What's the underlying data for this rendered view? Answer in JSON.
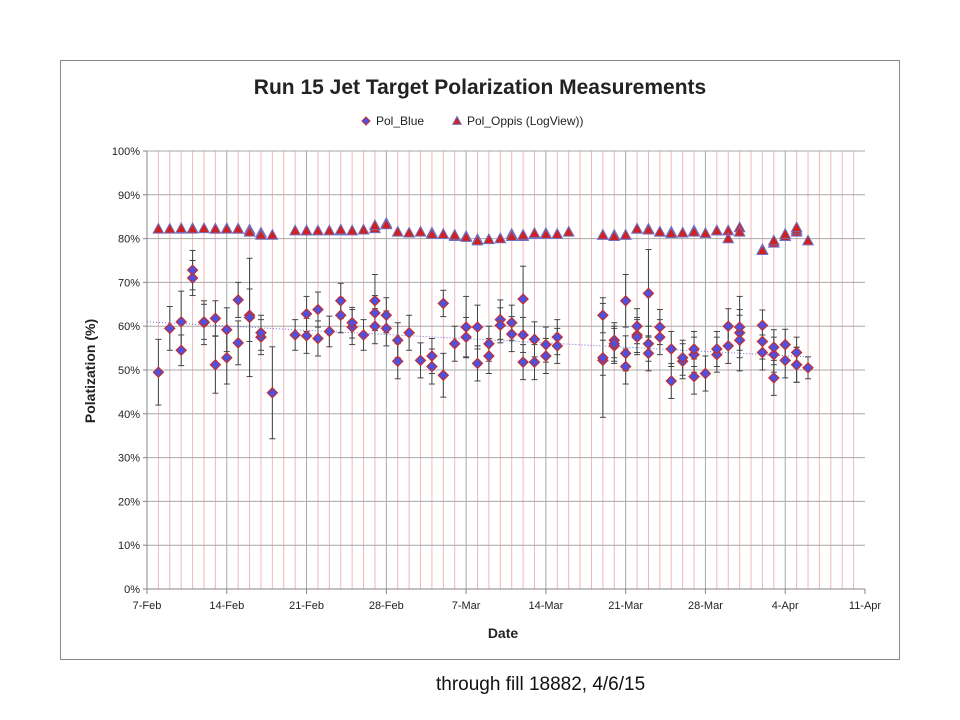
{
  "chart_data": {
    "type": "scatter",
    "title": "Run 15 Jet Target Polarization Measurements",
    "xlabel": "Date",
    "ylabel": "Polatization (%)",
    "x_unit": "date (2015)",
    "xlim": [
      "2015-02-07",
      "2015-04-11"
    ],
    "ylim": [
      0,
      100
    ],
    "y_ticks": [
      "0%",
      "10%",
      "20%",
      "30%",
      "40%",
      "50%",
      "60%",
      "70%",
      "80%",
      "90%",
      "100%"
    ],
    "x_ticks": [
      "7-Feb",
      "14-Feb",
      "21-Feb",
      "28-Feb",
      "7-Mar",
      "14-Mar",
      "21-Mar",
      "28-Mar",
      "4-Apr",
      "11-Apr"
    ],
    "gridlines": true,
    "legend_position": "top",
    "trendline": {
      "series": "Pol_Blue",
      "style": "dotted",
      "start": [
        "2015-02-07",
        61
      ],
      "end": [
        "2015-04-06",
        53
      ]
    },
    "series": [
      {
        "name": "Pol_Blue",
        "marker": "diamond",
        "color": "#5050e0",
        "edge": "#c03030",
        "points": [
          [
            "2015-02-08",
            49.5,
            7.5
          ],
          [
            "2015-02-09",
            59.5,
            5.0
          ],
          [
            "2015-02-10",
            54.5,
            3.5
          ],
          [
            "2015-02-10",
            61.0,
            7.0
          ],
          [
            "2015-02-11",
            71.0,
            4.0
          ],
          [
            "2015-02-11",
            72.8,
            4.5
          ],
          [
            "2015-02-12",
            60.8,
            5.0
          ],
          [
            "2015-02-12",
            61.0,
            4.0
          ],
          [
            "2015-02-13",
            61.8,
            4.0
          ],
          [
            "2015-02-13",
            51.2,
            6.5
          ],
          [
            "2015-02-14",
            59.2,
            5.0
          ],
          [
            "2015-02-14",
            52.8,
            6.0
          ],
          [
            "2015-02-15",
            66.0,
            4.0
          ],
          [
            "2015-02-15",
            56.2,
            5.0
          ],
          [
            "2015-02-16",
            62.5,
            6.0
          ],
          [
            "2015-02-16",
            62.0,
            13.5
          ],
          [
            "2015-02-17",
            57.5,
            4.0
          ],
          [
            "2015-02-17",
            58.5,
            4.0
          ],
          [
            "2015-02-18",
            44.8,
            10.5
          ],
          [
            "2015-02-20",
            58.0,
            3.5
          ],
          [
            "2015-02-21",
            57.8,
            4.0
          ],
          [
            "2015-02-21",
            62.8,
            4.0
          ],
          [
            "2015-02-22",
            63.8,
            4.0
          ],
          [
            "2015-02-22",
            57.2,
            4.0
          ],
          [
            "2015-02-23",
            58.8,
            3.5
          ],
          [
            "2015-02-24",
            65.8,
            4.0
          ],
          [
            "2015-02-24",
            62.5,
            4.0
          ],
          [
            "2015-02-25",
            59.8,
            4.0
          ],
          [
            "2015-02-25",
            60.8,
            3.5
          ],
          [
            "2015-02-26",
            58.0,
            3.5
          ],
          [
            "2015-02-27",
            63.0,
            4.0
          ],
          [
            "2015-02-27",
            65.8,
            6.0
          ],
          [
            "2015-02-27",
            60.0,
            4.0
          ],
          [
            "2015-02-28",
            59.5,
            4.0
          ],
          [
            "2015-02-28",
            62.5,
            4.0
          ],
          [
            "2015-03-01",
            56.8,
            4.0
          ],
          [
            "2015-03-01",
            52.0,
            4.0
          ],
          [
            "2015-03-02",
            58.5,
            4.0
          ],
          [
            "2015-03-03",
            52.2,
            4.0
          ],
          [
            "2015-03-04",
            53.2,
            4.0
          ],
          [
            "2015-03-04",
            50.8,
            4.0
          ],
          [
            "2015-03-05",
            65.2,
            3.0
          ],
          [
            "2015-03-05",
            48.8,
            5.0
          ],
          [
            "2015-03-06",
            56.0,
            4.0
          ],
          [
            "2015-03-07",
            57.5,
            4.5
          ],
          [
            "2015-03-07",
            59.8,
            7.0
          ],
          [
            "2015-03-08",
            51.5,
            4.0
          ],
          [
            "2015-03-08",
            59.8,
            5.0
          ],
          [
            "2015-03-09",
            56.0,
            4.0
          ],
          [
            "2015-03-09",
            53.2,
            4.0
          ],
          [
            "2015-03-10",
            61.5,
            4.5
          ],
          [
            "2015-03-10",
            60.2,
            4.0
          ],
          [
            "2015-03-11",
            60.8,
            4.0
          ],
          [
            "2015-03-11",
            58.2,
            4.0
          ],
          [
            "2015-03-12",
            51.8,
            4.0
          ],
          [
            "2015-03-12",
            58.0,
            4.0
          ],
          [
            "2015-03-12",
            66.2,
            7.5
          ],
          [
            "2015-03-13",
            51.8,
            4.0
          ],
          [
            "2015-03-13",
            57.0,
            4.0
          ],
          [
            "2015-03-14",
            53.2,
            4.0
          ],
          [
            "2015-03-14",
            55.8,
            4.0
          ],
          [
            "2015-03-15",
            57.5,
            4.0
          ],
          [
            "2015-03-15",
            55.5,
            4.0
          ],
          [
            "2015-03-19",
            62.5,
            4.0
          ],
          [
            "2015-03-19",
            52.2,
            13.0
          ],
          [
            "2015-03-19",
            52.8,
            4.0
          ],
          [
            "2015-03-20",
            56.8,
            4.0
          ],
          [
            "2015-03-20",
            55.5,
            4.0
          ],
          [
            "2015-03-20",
            56.0,
            4.0
          ],
          [
            "2015-03-21",
            53.8,
            4.0
          ],
          [
            "2015-03-21",
            50.8,
            4.0
          ],
          [
            "2015-03-21",
            65.8,
            6.0
          ],
          [
            "2015-03-22",
            60.0,
            4.0
          ],
          [
            "2015-03-22",
            58.0,
            4.0
          ],
          [
            "2015-03-22",
            57.5,
            4.0
          ],
          [
            "2015-03-23",
            67.5,
            10.0
          ],
          [
            "2015-03-23",
            53.8,
            4.0
          ],
          [
            "2015-03-23",
            56.0,
            4.0
          ],
          [
            "2015-03-24",
            57.5,
            4.0
          ],
          [
            "2015-03-24",
            59.8,
            4.0
          ],
          [
            "2015-03-25",
            47.5,
            4.0
          ],
          [
            "2015-03-25",
            54.8,
            4.0
          ],
          [
            "2015-03-26",
            52.0,
            4.0
          ],
          [
            "2015-03-26",
            52.8,
            4.0
          ],
          [
            "2015-03-27",
            48.5,
            4.0
          ],
          [
            "2015-03-27",
            53.5,
            4.0
          ],
          [
            "2015-03-27",
            54.8,
            4.0
          ],
          [
            "2015-03-28",
            49.2,
            4.0
          ],
          [
            "2015-03-29",
            53.5,
            4.0
          ],
          [
            "2015-03-29",
            54.8,
            4.0
          ],
          [
            "2015-03-30",
            55.5,
            4.0
          ],
          [
            "2015-03-30",
            60.0,
            4.0
          ],
          [
            "2015-03-31",
            58.5,
            4.0
          ],
          [
            "2015-03-31",
            59.8,
            7.0
          ],
          [
            "2015-03-31",
            56.8,
            7.0
          ],
          [
            "2015-04-02",
            56.5,
            4.0
          ],
          [
            "2015-04-02",
            60.2,
            3.5
          ],
          [
            "2015-04-02",
            54.0,
            4.0
          ],
          [
            "2015-04-03",
            53.5,
            4.0
          ],
          [
            "2015-04-03",
            55.2,
            4.0
          ],
          [
            "2015-04-03",
            48.2,
            4.0
          ],
          [
            "2015-04-04",
            52.2,
            4.0
          ],
          [
            "2015-04-04",
            55.8,
            3.5
          ],
          [
            "2015-04-05",
            51.2,
            4.0
          ],
          [
            "2015-04-05",
            54.0,
            3.5
          ],
          [
            "2015-04-05",
            51.2,
            4.0
          ],
          [
            "2015-04-06",
            50.5,
            2.5
          ]
        ]
      },
      {
        "name": "Pol_Oppis (LogView))",
        "marker": "triangle",
        "color": "#d02020",
        "edge": "#7070c0",
        "points": [
          [
            "2015-02-08",
            82.2
          ],
          [
            "2015-02-09",
            82.2
          ],
          [
            "2015-02-10",
            82.2
          ],
          [
            "2015-02-10",
            82.3
          ],
          [
            "2015-02-11",
            82.3
          ],
          [
            "2015-02-11",
            82.2
          ],
          [
            "2015-02-12",
            82.3
          ],
          [
            "2015-02-13",
            82.2
          ],
          [
            "2015-02-13",
            82.2
          ],
          [
            "2015-02-14",
            82.3
          ],
          [
            "2015-02-14",
            82.2
          ],
          [
            "2015-02-15",
            82.2
          ],
          [
            "2015-02-15",
            82.2
          ],
          [
            "2015-02-16",
            82.0
          ],
          [
            "2015-02-16",
            81.5
          ],
          [
            "2015-02-17",
            81.3
          ],
          [
            "2015-02-17",
            80.8
          ],
          [
            "2015-02-18",
            80.8
          ],
          [
            "2015-02-20",
            81.8
          ],
          [
            "2015-02-21",
            81.8
          ],
          [
            "2015-02-21",
            81.8
          ],
          [
            "2015-02-22",
            81.8
          ],
          [
            "2015-02-23",
            81.8
          ],
          [
            "2015-02-24",
            81.8
          ],
          [
            "2015-02-24",
            82.0
          ],
          [
            "2015-02-25",
            81.8
          ],
          [
            "2015-02-26",
            82.0
          ],
          [
            "2015-02-27",
            82.3
          ],
          [
            "2015-02-27",
            83.0
          ],
          [
            "2015-02-28",
            83.5
          ],
          [
            "2015-02-28",
            83.2
          ],
          [
            "2015-03-01",
            81.5
          ],
          [
            "2015-03-02",
            81.3
          ],
          [
            "2015-03-03",
            81.5
          ],
          [
            "2015-03-04",
            81.3
          ],
          [
            "2015-03-04",
            81.0
          ],
          [
            "2015-03-05",
            81.0
          ],
          [
            "2015-03-06",
            80.5
          ],
          [
            "2015-03-06",
            80.8
          ],
          [
            "2015-03-07",
            80.5
          ],
          [
            "2015-03-07",
            80.3
          ],
          [
            "2015-03-08",
            79.8
          ],
          [
            "2015-03-08",
            79.5
          ],
          [
            "2015-03-09",
            79.8
          ],
          [
            "2015-03-10",
            80.0
          ],
          [
            "2015-03-11",
            81.0
          ],
          [
            "2015-03-11",
            80.5
          ],
          [
            "2015-03-12",
            80.5
          ],
          [
            "2015-03-12",
            80.8
          ],
          [
            "2015-03-13",
            81.0
          ],
          [
            "2015-03-13",
            81.2
          ],
          [
            "2015-03-14",
            81.2
          ],
          [
            "2015-03-14",
            81.0
          ],
          [
            "2015-03-15",
            81.0
          ],
          [
            "2015-03-16",
            81.5
          ],
          [
            "2015-03-19",
            80.8
          ],
          [
            "2015-03-19",
            80.8
          ],
          [
            "2015-03-20",
            80.8
          ],
          [
            "2015-03-20",
            80.5
          ],
          [
            "2015-03-21",
            80.8
          ],
          [
            "2015-03-21",
            80.8
          ],
          [
            "2015-03-22",
            82.2
          ],
          [
            "2015-03-22",
            82.2
          ],
          [
            "2015-03-23",
            82.2
          ],
          [
            "2015-03-23",
            82.0
          ],
          [
            "2015-03-24",
            81.5
          ],
          [
            "2015-03-24",
            81.5
          ],
          [
            "2015-03-25",
            81.5
          ],
          [
            "2015-03-25",
            81.2
          ],
          [
            "2015-03-26",
            81.3
          ],
          [
            "2015-03-27",
            81.8
          ],
          [
            "2015-03-27",
            81.5
          ],
          [
            "2015-03-28",
            81.2
          ],
          [
            "2015-03-29",
            81.8
          ],
          [
            "2015-03-29",
            81.8
          ],
          [
            "2015-03-30",
            81.8
          ],
          [
            "2015-03-30",
            80.0
          ],
          [
            "2015-03-31",
            82.5
          ],
          [
            "2015-03-31",
            81.5
          ],
          [
            "2015-04-02",
            77.5
          ],
          [
            "2015-04-02",
            77.3
          ],
          [
            "2015-04-03",
            79.0
          ],
          [
            "2015-04-03",
            79.5
          ],
          [
            "2015-04-04",
            80.5
          ],
          [
            "2015-04-04",
            81.0
          ],
          [
            "2015-04-05",
            81.5
          ],
          [
            "2015-04-05",
            82.0
          ],
          [
            "2015-04-05",
            82.5
          ],
          [
            "2015-04-06",
            79.5
          ]
        ]
      }
    ]
  },
  "footnote": "through fill 18882, 4/6/15"
}
